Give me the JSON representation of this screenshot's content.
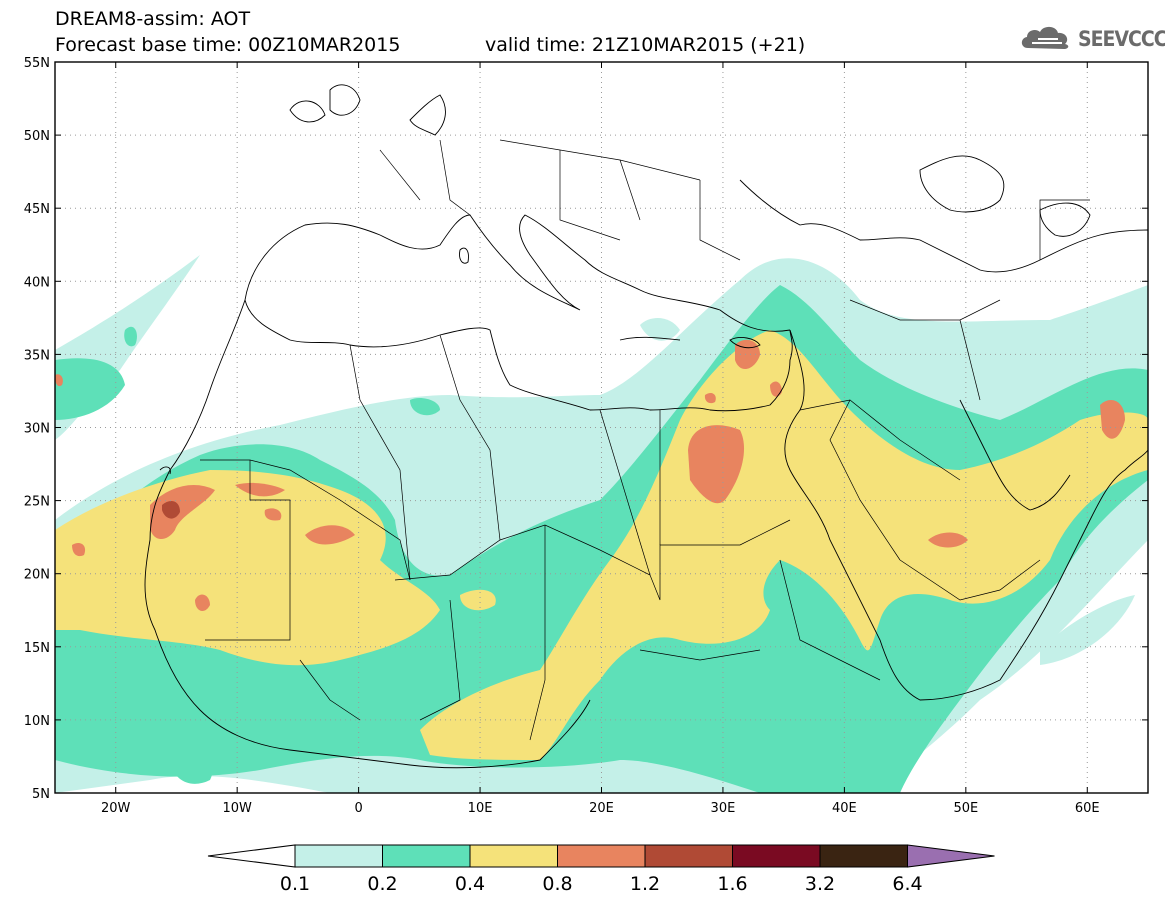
{
  "header": {
    "line1": "DREAM8-assim: AOT",
    "line2": "Forecast base time: 00Z10MAR2015",
    "line3": "valid time: 21Z10MAR2015 (+21)"
  },
  "logo": {
    "text": "SEEVCCC",
    "icon": "cloud-icon"
  },
  "map": {
    "lon_range": [
      -25,
      65
    ],
    "lat_range": [
      5,
      55
    ],
    "lat_ticks": [
      "55N",
      "50N",
      "45N",
      "40N",
      "35N",
      "30N",
      "25N",
      "20N",
      "15N",
      "10N",
      "5N"
    ],
    "lon_ticks": [
      "20W",
      "10W",
      "0",
      "10E",
      "20E",
      "30E",
      "40E",
      "50E",
      "60E"
    ],
    "gridlines": "dotted"
  },
  "legend": {
    "levels": [
      "0.1",
      "0.2",
      "0.4",
      "0.8",
      "1.2",
      "1.6",
      "3.2",
      "6.4"
    ],
    "colors": [
      "#ffffff",
      "#c4f0e8",
      "#5ee0b8",
      "#f5e27a",
      "#e8845f",
      "#b04a35",
      "#7a0a22",
      "#3a2412",
      "#9a6fb0"
    ]
  },
  "fields": {
    "c1": "#c4f0e8",
    "c2": "#5ee0b8",
    "c3": "#f5e27a",
    "c4": "#e8845f",
    "c5": "#b04a35"
  }
}
